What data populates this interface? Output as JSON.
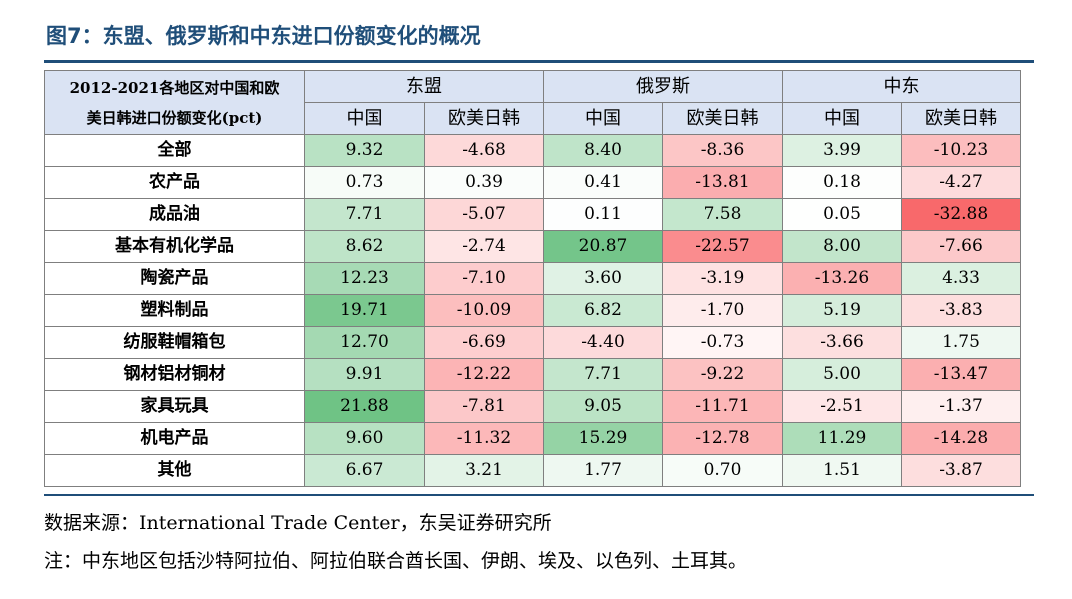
{
  "title": "图7：东盟、俄罗斯和中东进口份额变化的概况",
  "table": {
    "corner_label_line1": "2012-2021各地区对中国和欧",
    "corner_label_line2": "美日韩进口份额变化(pct)",
    "regions": [
      "东盟",
      "俄罗斯",
      "中东"
    ],
    "subcolumns": [
      "中国",
      "欧美日韩"
    ],
    "rows": [
      {
        "label": "全部",
        "values": [
          "9.32",
          "-4.68",
          "8.40",
          "-8.36",
          "3.99",
          "-10.23"
        ]
      },
      {
        "label": "农产品",
        "values": [
          "0.73",
          "0.39",
          "0.41",
          "-13.81",
          "0.18",
          "-4.27"
        ]
      },
      {
        "label": "成品油",
        "values": [
          "7.71",
          "-5.07",
          "0.11",
          "7.58",
          "0.05",
          "-32.88"
        ]
      },
      {
        "label": "基本有机化学品",
        "values": [
          "8.62",
          "-2.74",
          "20.87",
          "-22.57",
          "8.00",
          "-7.66"
        ]
      },
      {
        "label": "陶瓷产品",
        "values": [
          "12.23",
          "-7.10",
          "3.60",
          "-3.19",
          "-13.26",
          "4.33"
        ]
      },
      {
        "label": "塑料制品",
        "values": [
          "19.71",
          "-10.09",
          "6.82",
          "-1.70",
          "5.19",
          "-3.83"
        ]
      },
      {
        "label": "纺服鞋帽箱包",
        "values": [
          "12.70",
          "-6.69",
          "-4.40",
          "-0.73",
          "-3.66",
          "1.75"
        ]
      },
      {
        "label": "钢材铝材铜材",
        "values": [
          "9.91",
          "-12.22",
          "7.71",
          "-9.22",
          "5.00",
          "-13.47"
        ]
      },
      {
        "label": "家具玩具",
        "values": [
          "21.88",
          "-7.81",
          "9.05",
          "-11.71",
          "-2.51",
          "-1.37"
        ]
      },
      {
        "label": "机电产品",
        "values": [
          "9.60",
          "-11.32",
          "15.29",
          "-12.78",
          "11.29",
          "-14.28"
        ]
      },
      {
        "label": "其他",
        "values": [
          "6.67",
          "3.21",
          "1.77",
          "0.70",
          "1.51",
          "-3.87"
        ]
      }
    ]
  },
  "colors": {
    "header_bg": "#dae3f3",
    "positive": "#63be7b",
    "negative": "#f8696b",
    "title": "#1f4e79"
  },
  "source": "数据来源：International Trade Center，东吴证券研究所",
  "note": "注：中东地区包括沙特阿拉伯、阿拉伯联合酋长国、伊朗、埃及、以色列、土耳其。"
}
